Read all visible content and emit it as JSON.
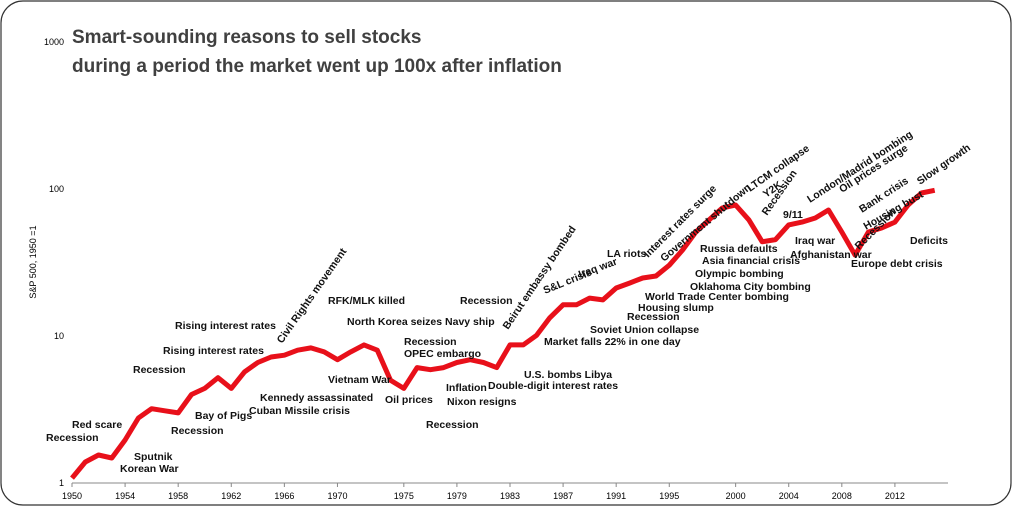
{
  "chart_data": {
    "type": "line",
    "title": [
      "Smart-sounding reasons to sell stocks",
      "during a period the market went up 100x after inflation"
    ],
    "ylabel": "S&P 500, 1950 =1",
    "x": [
      1950,
      1951,
      1952,
      1953,
      1954,
      1955,
      1956,
      1957,
      1958,
      1959,
      1960,
      1961,
      1962,
      1963,
      1964,
      1965,
      1966,
      1967,
      1968,
      1969,
      1970,
      1971,
      1972,
      1973,
      1974,
      1975,
      1976,
      1977,
      1978,
      1979,
      1980,
      1981,
      1982,
      1983,
      1984,
      1985,
      1986,
      1987,
      1988,
      1989,
      1990,
      1991,
      1992,
      1993,
      1994,
      1995,
      1996,
      1997,
      1998,
      1999,
      2000,
      2001,
      2002,
      2003,
      2004,
      2005,
      2006,
      2007,
      2008,
      2009,
      2010,
      2011,
      2012,
      2013,
      2014,
      2015
    ],
    "series": [
      {
        "color": "#e8101a",
        "values": [
          1.08,
          1.39,
          1.55,
          1.48,
          1.96,
          2.77,
          3.2,
          3.1,
          3.0,
          4.0,
          4.4,
          5.2,
          4.4,
          5.7,
          6.6,
          7.2,
          7.4,
          8.0,
          8.3,
          7.8,
          6.9,
          7.8,
          8.7,
          8.0,
          5.0,
          4.4,
          6.1,
          5.9,
          6.1,
          6.6,
          6.9,
          6.6,
          6.1,
          8.7,
          8.7,
          10.1,
          13.3,
          16.3,
          16.3,
          18.1,
          17.6,
          21.2,
          22.9,
          24.8,
          25.6,
          30.3,
          38.4,
          51,
          61.6,
          74.4,
          77.8,
          61.6,
          43.7,
          45.3,
          57,
          59.5,
          63.5,
          72,
          51,
          35.5,
          51,
          54.3,
          59.5,
          78,
          94,
          98
        ]
      }
    ],
    "xlim": [
      1950,
      2016
    ],
    "ylim": [
      1,
      1000
    ],
    "log_y": true,
    "xticks": [
      1950,
      1954,
      1958,
      1962,
      1966,
      1970,
      1975,
      1979,
      1983,
      1987,
      1991,
      1995,
      2000,
      2004,
      2008,
      2012
    ],
    "yticks": [
      1,
      10,
      100,
      1000
    ],
    "grid": false,
    "annotations": [
      "Recession",
      "Red scare",
      "Sputnik",
      "Korean War",
      "Recession",
      "Recession",
      "Bay of Pigs",
      "Rising interest rates",
      "Rising interest rates",
      "Kennedy assassinated",
      "Cuban Missile crisis",
      "Civil Rights movement",
      "RFK/MLK killed",
      "North Korea seizes Navy ship",
      "Vietnam War",
      "Recession",
      "OPEC embargo",
      "Oil prices",
      "Inflation",
      "Nixon resigns",
      "Recession",
      "Recession",
      "Beirut embassy bombed",
      "U.S. bombs Libya",
      "Double-digit interest rates",
      "Market falls 22% in one day",
      "S&L crisis",
      "Iraq war",
      "LA riots",
      "Interest rates surge",
      "Government shutdown",
      "LTCM collapse",
      "Y2K",
      "Recession",
      "9/11",
      "London/Madrid bombing",
      "Oil prices surge",
      "Bank crisis",
      "Housing bust",
      "Slow growth",
      "Recession",
      "Deficits",
      "Europe debt crisis",
      "Iraq war",
      "Afghanistan war",
      "Russia defaults",
      "Asia financial crisis",
      "Olympic bombing",
      "Oklahoma City bombing",
      "World Trade Center bombing",
      "Housing slump",
      "Recession",
      "Soviet Union collapse"
    ]
  }
}
